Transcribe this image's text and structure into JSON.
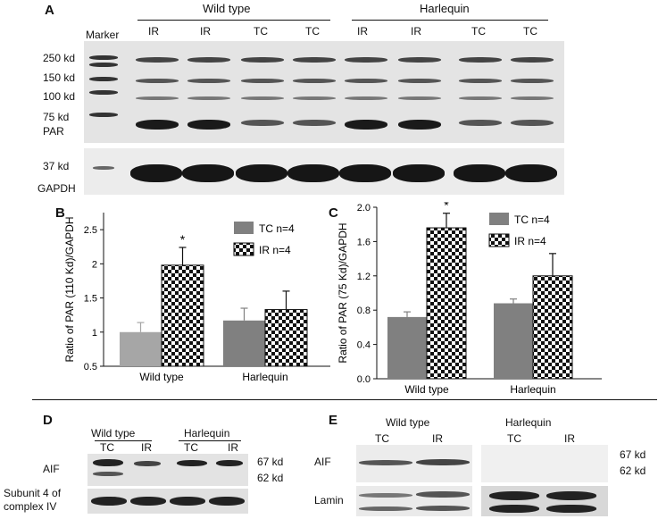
{
  "panel_labels": {
    "a": "A",
    "b": "B",
    "c": "C",
    "d": "D",
    "e": "E"
  },
  "blot_a": {
    "marker_label": "Marker",
    "group_wild": "Wild type",
    "group_harlequin": "Harlequin",
    "lanes": [
      "IR",
      "IR",
      "TC",
      "TC",
      "IR",
      "IR",
      "TC",
      "TC"
    ],
    "kd_labels": [
      "250 kd",
      "150 kd",
      "100 kd",
      "75 kd"
    ],
    "par_label": "PAR",
    "kd37": "37 kd",
    "gapdh": "GAPDH"
  },
  "blot_d": {
    "group_wild": "Wild type",
    "group_harlequin": "Harlequin",
    "lanes": [
      "TC",
      "IR",
      "TC",
      "IR"
    ],
    "row1": "AIF",
    "row2": "Subunit 4 of complex IV",
    "kd67": "67 kd",
    "kd62": "62 kd"
  },
  "blot_e": {
    "group_wild": "Wild type",
    "group_harlequin": "Harlequin",
    "lanes": [
      "TC",
      "IR",
      "TC",
      "IR"
    ],
    "row1": "AIF",
    "row2": "Lamin",
    "kd67": "67 kd",
    "kd62": "62 kd"
  },
  "colors": {
    "tc_wild": "#a6a6a6",
    "tc_harlequin": "#808080"
  },
  "chart_data": [
    {
      "type": "bar",
      "categories": [
        "Wild type",
        "Harlequin"
      ],
      "series": [
        {
          "name": "TC n=4",
          "values": [
            1.0,
            1.17
          ],
          "errors": [
            0.14,
            0.18
          ]
        },
        {
          "name": "IR n=4",
          "values": [
            1.98,
            1.33
          ],
          "errors": [
            0.26,
            0.27
          ]
        }
      ],
      "ylabel": "Ratio of PAR (110 Kd)/GAPDH",
      "yticks": [
        "0.5",
        "1",
        "1.5",
        "2",
        "2.5"
      ],
      "ylim": [
        0.5,
        2.75
      ],
      "annotation": "*",
      "legend": "top-right"
    },
    {
      "type": "bar",
      "categories": [
        "Wild type",
        "Harlequin"
      ],
      "series": [
        {
          "name": "TC n=4",
          "values": [
            0.72,
            0.88
          ],
          "errors": [
            0.06,
            0.05
          ]
        },
        {
          "name": "IR n=4",
          "values": [
            1.76,
            1.2
          ],
          "errors": [
            0.17,
            0.26
          ]
        }
      ],
      "ylabel": "Ratio of PAR (75 Kd)/GAPDH",
      "yticks": [
        "0.0",
        "0.4",
        "0.8",
        "1.2",
        "1.6",
        "2.0"
      ],
      "ylim": [
        0,
        2.0
      ],
      "annotation": "*",
      "legend": "top-right"
    }
  ]
}
